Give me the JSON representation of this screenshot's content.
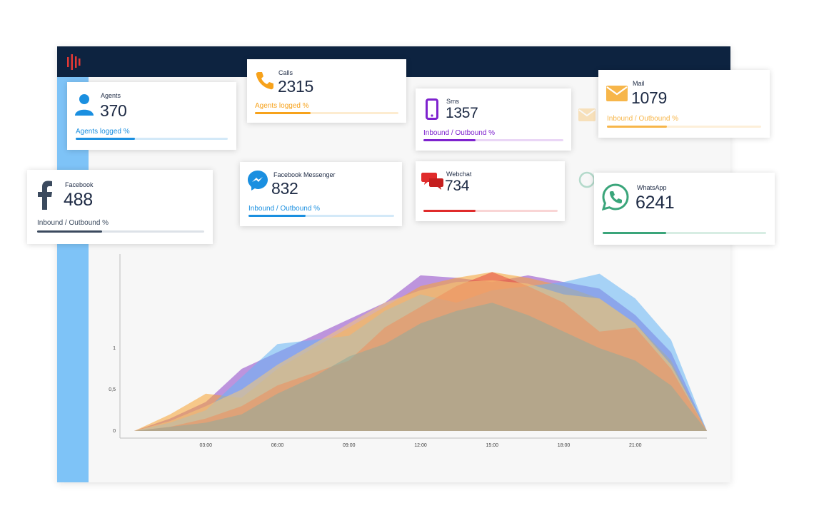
{
  "colors": {
    "topbar": "#0d2340",
    "sidebar": "#7ec3f7",
    "agents": "#1a8fe0",
    "calls": "#f7a21b",
    "sms": "#7e22ce",
    "mail": "#f7b64a",
    "facebook": "#3b4a5e",
    "messenger": "#1a8fe0",
    "webchat": "#e02b2b",
    "whatsapp": "#3aa57a"
  },
  "cards": {
    "agents": {
      "label": "Agents",
      "value": "370",
      "sub": "Agents logged %",
      "icon": "user-icon",
      "progress": 0.39
    },
    "calls": {
      "label": "Calls",
      "value": "2315",
      "sub": "Agents logged %",
      "icon": "phone-icon",
      "progress": 0.39
    },
    "sms": {
      "label": "Sms",
      "value": "1357",
      "sub": "Inbound / Outbound %",
      "icon": "mobile-icon",
      "progress": 0.37
    },
    "mail": {
      "label": "Mail",
      "value": "1079",
      "sub": "Inbound / Outbound %",
      "icon": "envelope-icon",
      "progress": 0.39
    },
    "facebook": {
      "label": "Facebook",
      "value": "488",
      "sub": "Inbound / Outbound %",
      "icon": "facebook-icon",
      "progress": 0.39
    },
    "messenger": {
      "label": "Facebook Messenger",
      "value": "832",
      "sub": "Inbound / Outbound %",
      "icon": "messenger-icon",
      "progress": 0.39
    },
    "webchat": {
      "label": "Webchat",
      "value": "734",
      "sub": "",
      "icon": "chat-bubbles-icon",
      "progress": 0.39
    },
    "whatsapp": {
      "label": "WhatsApp",
      "value": "6241",
      "sub": "",
      "icon": "whatsapp-icon",
      "progress": 0.39
    }
  },
  "chart_data": {
    "type": "area",
    "xlabel": "",
    "ylabel": "",
    "x": [
      "00:00",
      "01:30",
      "03:00",
      "04:30",
      "06:00",
      "07:30",
      "09:00",
      "10:30",
      "12:00",
      "13:30",
      "15:00",
      "16:30",
      "18:00",
      "19:30",
      "21:00",
      "22:30",
      "23:30"
    ],
    "x_ticks": [
      "03:00",
      "06:00",
      "09:00",
      "12:00",
      "15:00",
      "18:00",
      "21:00"
    ],
    "y_ticks": [
      "0",
      "0,5",
      "1"
    ],
    "ylim": [
      0,
      2
    ],
    "grid": false,
    "series": [
      {
        "color": "#8e44c8",
        "values": [
          0,
          0.15,
          0.35,
          0.75,
          0.95,
          1.15,
          1.35,
          1.55,
          1.88,
          1.85,
          1.8,
          1.88,
          1.8,
          1.72,
          1.4,
          0.95,
          0
        ]
      },
      {
        "color": "#f7a32f",
        "values": [
          0,
          0.2,
          0.45,
          0.4,
          0.75,
          1.0,
          1.25,
          1.5,
          1.75,
          1.85,
          1.92,
          1.85,
          1.75,
          1.6,
          1.3,
          0.85,
          0
        ]
      },
      {
        "color": "#64b5f6",
        "values": [
          0,
          0.1,
          0.25,
          0.65,
          1.05,
          1.1,
          1.15,
          1.45,
          1.65,
          1.55,
          1.7,
          1.75,
          1.8,
          1.9,
          1.6,
          1.1,
          0
        ]
      },
      {
        "color": "#e5483f",
        "values": [
          0,
          0.05,
          0.15,
          0.3,
          0.55,
          0.7,
          0.85,
          1.25,
          1.5,
          1.75,
          1.92,
          1.75,
          1.55,
          1.2,
          1.25,
          0.75,
          0
        ]
      },
      {
        "color": "#f6c877",
        "values": [
          0,
          0.12,
          0.3,
          0.5,
          0.8,
          1.05,
          1.3,
          1.55,
          1.7,
          1.8,
          1.82,
          1.78,
          1.65,
          1.6,
          1.3,
          0.8,
          0
        ]
      },
      {
        "color": "#8fa99a",
        "values": [
          0,
          0.05,
          0.1,
          0.2,
          0.45,
          0.65,
          0.9,
          1.05,
          1.3,
          1.45,
          1.55,
          1.4,
          1.2,
          1.0,
          0.85,
          0.55,
          0
        ]
      }
    ]
  }
}
